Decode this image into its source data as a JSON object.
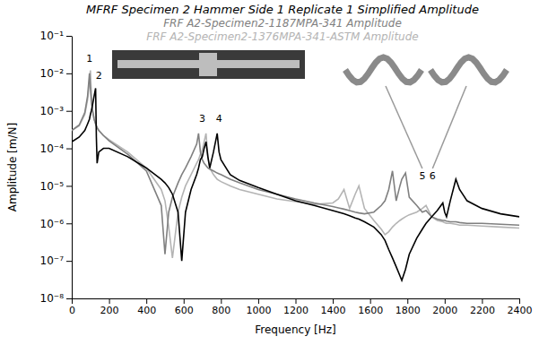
{
  "chart_data": {
    "type": "line",
    "log": "y",
    "grid": false,
    "legend": "top",
    "xlabel": "Frequency [Hz]",
    "ylabel": "Amplitude [m/N]",
    "xlim": [
      0,
      2400
    ],
    "xticks": [
      0,
      200,
      400,
      600,
      800,
      1000,
      1200,
      1400,
      1600,
      1800,
      2000,
      2200,
      2400
    ],
    "ylim": [
      1e-08,
      0.1
    ],
    "yticks": [
      {
        "value": 1e-08,
        "label": "10⁻⁸"
      },
      {
        "value": 1e-07,
        "label": "10⁻⁷"
      },
      {
        "value": 1e-06,
        "label": "10⁻⁶"
      },
      {
        "value": 1e-05,
        "label": "10⁻⁵"
      },
      {
        "value": 0.0001,
        "label": "10⁻⁴"
      },
      {
        "value": 0.001,
        "label": "10⁻³"
      },
      {
        "value": 0.01,
        "label": "10⁻²"
      },
      {
        "value": 0.1,
        "label": "10⁻¹"
      }
    ],
    "x": [
      0,
      40,
      70,
      85,
      95,
      100,
      105,
      110,
      120,
      128,
      132,
      136,
      145,
      170,
      200,
      300,
      400,
      480,
      500,
      520,
      540,
      570,
      590,
      610,
      640,
      670,
      680,
      690,
      700,
      710,
      720,
      730,
      740,
      760,
      780,
      790,
      800,
      850,
      900,
      1000,
      1100,
      1200,
      1300,
      1400,
      1430,
      1460,
      1490,
      1520,
      1540,
      1570,
      1620,
      1660,
      1680,
      1700,
      1720,
      1740,
      1760,
      1770,
      1790,
      1810,
      1850,
      1880,
      1900,
      1930,
      1960,
      1990,
      2000,
      2010,
      2030,
      2060,
      2080,
      2120,
      2200,
      2300,
      2400
    ],
    "series": [
      {
        "name": "MFRF Specimen 2 Hammer Side 1 Replicate 1 Simplified Amplitude",
        "color": "#000000",
        "values": [
          0.00015,
          0.0002,
          0.0003,
          0.00045,
          0.0006,
          0.0008,
          0.001,
          0.0013,
          0.0025,
          0.004,
          0.0002,
          4e-05,
          8e-05,
          0.0001,
          0.0001,
          6e-05,
          3e-05,
          1.5e-05,
          1.2e-05,
          9e-06,
          6e-06,
          2e-06,
          1e-07,
          2e-06,
          8e-06,
          2e-05,
          3e-05,
          5e-05,
          6e-05,
          0.0001,
          0.00015,
          6e-05,
          3e-05,
          8e-05,
          0.00025,
          8e-05,
          5e-05,
          2e-05,
          1.4e-05,
          9e-06,
          6e-06,
          4e-06,
          3e-06,
          2.2e-06,
          2e-06,
          1.8e-06,
          1.6e-06,
          1.4e-06,
          1.3e-06,
          1.1e-06,
          8e-07,
          5e-07,
          3.5e-07,
          2e-07,
          1.2e-07,
          7e-08,
          4e-08,
          3e-08,
          6e-08,
          1.5e-07,
          4e-07,
          7e-07,
          1e-06,
          1.5e-06,
          2.2e-06,
          3.5e-06,
          2e-06,
          1.5e-06,
          4e-06,
          1.5e-05,
          8e-06,
          4e-06,
          2.5e-06,
          1.8e-06,
          1.5e-06
        ]
      },
      {
        "name": "FRF A2-Specimen2-1187MPA-341 Amplitude",
        "color": "#808080",
        "values": [
          0.0003,
          0.00042,
          0.0009,
          0.0025,
          0.01,
          0.004,
          0.0018,
          0.0011,
          0.0006,
          0.00045,
          0.0004,
          0.00036,
          0.0003,
          0.00022,
          0.00016,
          7e-05,
          2.5e-05,
          3e-06,
          1.5e-07,
          2e-06,
          5e-06,
          1.2e-05,
          2e-05,
          3e-05,
          6e-05,
          0.00013,
          0.00025,
          8e-05,
          5e-05,
          4e-05,
          3.5e-05,
          3e-05,
          2.8e-05,
          2.5e-05,
          2.2e-05,
          2.1e-05,
          2e-05,
          1.5e-05,
          1.2e-05,
          8e-06,
          6e-06,
          4.5e-06,
          3.5e-06,
          2.8e-06,
          2.6e-06,
          2.4e-06,
          2.2e-06,
          2e-06,
          1.9e-06,
          1.8e-06,
          2e-06,
          3e-06,
          4e-06,
          8e-06,
          2.5e-05,
          4e-06,
          1e-05,
          1.5e-05,
          2.2e-05,
          5e-06,
          3e-06,
          2e-06,
          2.2e-06,
          1.5e-06,
          1.3e-06,
          1.2e-06,
          1.2e-06,
          1.15e-06,
          1.1e-06,
          1.1e-06,
          1.05e-06,
          1e-06,
          1e-06,
          9.5e-07,
          9e-07
        ]
      },
      {
        "name": "FRF A2-Specimen2-1376MPA-341-ASTM Amplitude",
        "color": "#b4b4b4",
        "values": [
          0.0003,
          0.0004,
          0.0008,
          0.002,
          0.006,
          0.012,
          0.003,
          0.0012,
          0.0006,
          0.00045,
          0.0004,
          0.00036,
          0.0003,
          0.00022,
          0.00017,
          8e-05,
          3e-05,
          8e-06,
          4e-06,
          8e-07,
          1.2e-07,
          2e-06,
          5e-06,
          1e-05,
          2e-05,
          4e-05,
          5e-05,
          7e-05,
          9e-05,
          0.00015,
          0.00025,
          6e-05,
          3e-05,
          2e-05,
          1.5e-05,
          1.4e-05,
          1.3e-05,
          1e-05,
          8e-06,
          6e-06,
          4.5e-06,
          3.8e-06,
          3.2e-06,
          3.5e-06,
          4.5e-06,
          8e-06,
          2.5e-06,
          6e-06,
          1e-05,
          2.5e-06,
          1.2e-06,
          7e-07,
          5e-07,
          6e-07,
          8e-07,
          1e-06,
          1.2e-06,
          1.3e-06,
          1.5e-06,
          1.7e-06,
          2e-06,
          2.5e-06,
          3e-06,
          1.5e-06,
          1.2e-06,
          1.1e-06,
          1.05e-06,
          1e-06,
          1e-06,
          9.5e-07,
          9e-07,
          9e-07,
          8.5e-07,
          8e-07,
          7.5e-07
        ]
      }
    ],
    "annotations": [
      {
        "text": "1",
        "x": 95,
        "y": 0.02
      },
      {
        "text": "2",
        "x": 145,
        "y": 0.007
      },
      {
        "text": "3",
        "x": 700,
        "y": 0.0005
      },
      {
        "text": "4",
        "x": 790,
        "y": 0.0005
      },
      {
        "text": "5",
        "x": 1880,
        "y": 1.5e-05
      },
      {
        "text": "6",
        "x": 1935,
        "y": 1.5e-05
      }
    ]
  }
}
